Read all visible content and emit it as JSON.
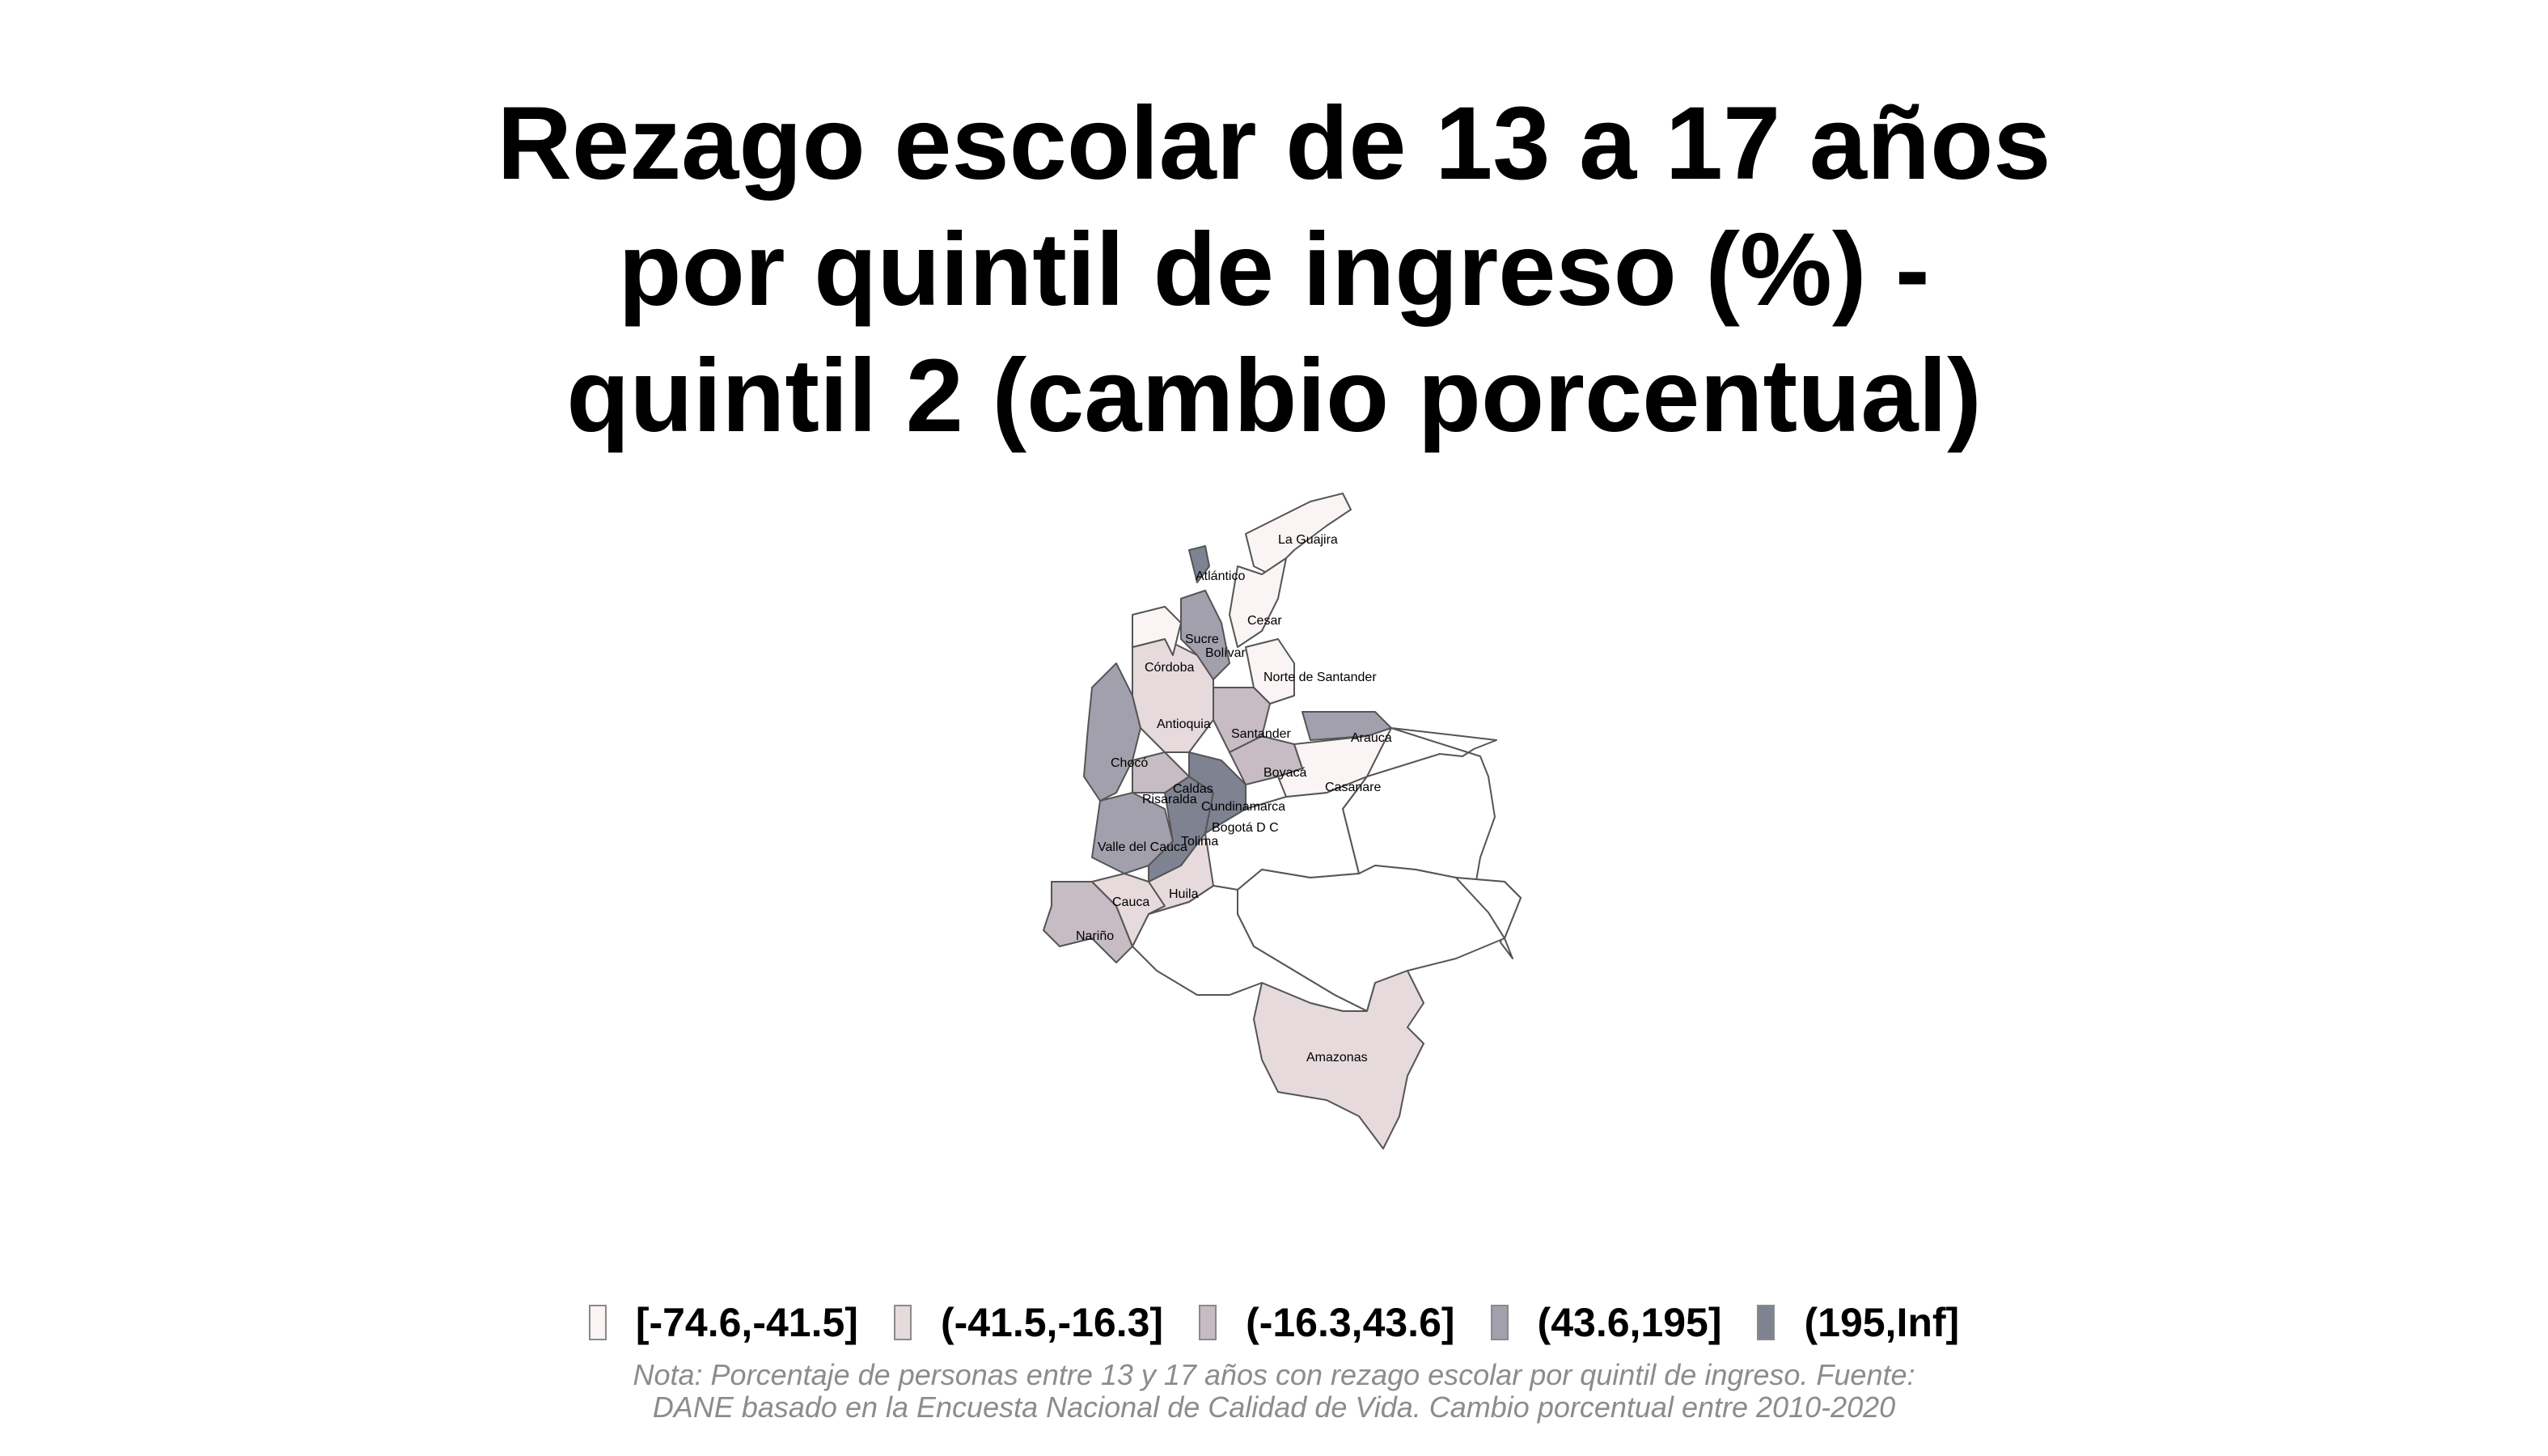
{
  "title": {
    "line1": "Rezago escolar de 13 a 17 años",
    "line2": "por quintil de ingreso (%) -",
    "line3": "quintil 2 (cambio porcentual)"
  },
  "legend": [
    {
      "label": "[-74.6,-41.5]",
      "color": "#fbf4f4"
    },
    {
      "label": "(-41.5,-16.3]",
      "color": "#e6dadd"
    },
    {
      "label": "(-16.3,43.6]",
      "color": "#c7bcc3"
    },
    {
      "label": "(43.6,195]",
      "color": "#a3a0ad"
    },
    {
      "label": "(195,Inf]",
      "color": "#7f8291"
    }
  ],
  "note": {
    "line1": "Nota: Porcentaje de personas entre 13 y 17 años con rezago escolar por quintil de ingreso. Fuente:",
    "line2": "DANE basado en la Encuesta Nacional de Calidad de Vida. Cambio porcentual entre 2010-2020"
  },
  "departments": [
    {
      "name": "La Guajira",
      "class": 0
    },
    {
      "name": "Atlántico",
      "class": 4
    },
    {
      "name": "Cesar",
      "class": 0
    },
    {
      "name": "Sucre",
      "class": 0
    },
    {
      "name": "Bolívar",
      "class": 3
    },
    {
      "name": "Córdoba",
      "class": 0
    },
    {
      "name": "Norte de Santander",
      "class": 0
    },
    {
      "name": "Antioquia",
      "class": 1
    },
    {
      "name": "Santander",
      "class": 2
    },
    {
      "name": "Arauca",
      "class": 3
    },
    {
      "name": "Chocó",
      "class": 3
    },
    {
      "name": "Boyacá",
      "class": 2
    },
    {
      "name": "Caldas",
      "class": 2
    },
    {
      "name": "Casanare",
      "class": 0
    },
    {
      "name": "Risaralda",
      "class": 3
    },
    {
      "name": "Cundinamarca",
      "class": 4
    },
    {
      "name": "Bogotá D C",
      "class": 4
    },
    {
      "name": "Tolima",
      "class": 4
    },
    {
      "name": "Valle del Cauca",
      "class": 3
    },
    {
      "name": "Huila",
      "class": 1
    },
    {
      "name": "Cauca",
      "class": 1
    },
    {
      "name": "Nariño",
      "class": 2
    },
    {
      "name": "Amazonas",
      "class": 1
    }
  ]
}
